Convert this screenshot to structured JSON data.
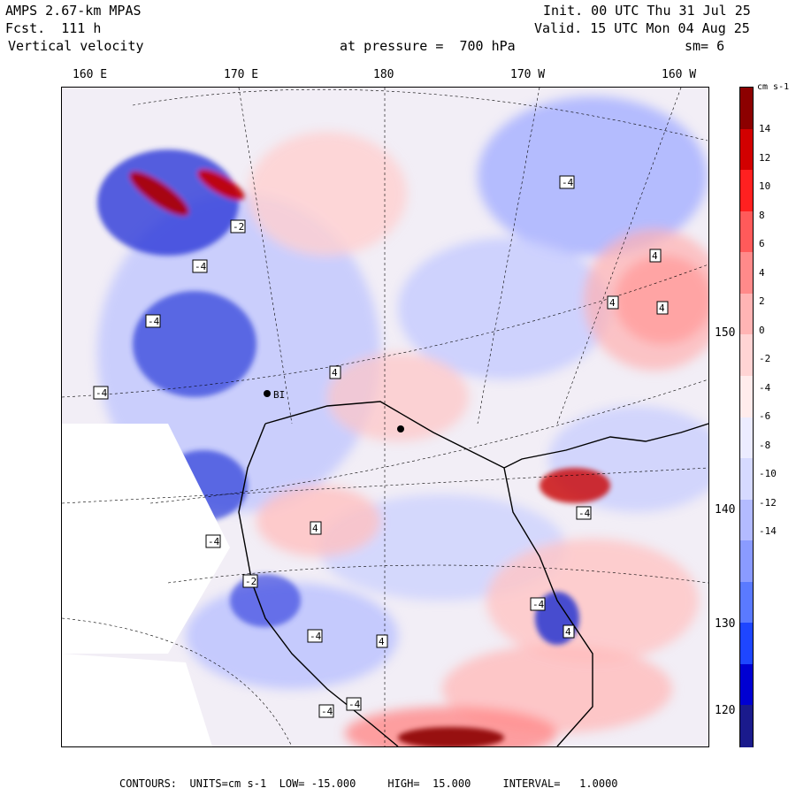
{
  "header": {
    "model": "AMPS 2.67-km MPAS",
    "forecast": "Fcst.  111 h",
    "field": "Vertical velocity",
    "init": "Init. 00 UTC Thu 31 Jul 25",
    "valid": "Valid. 15 UTC Mon 04 Aug 25",
    "pressure": "at pressure =  700 hPa",
    "smoothing": "sm= 6"
  },
  "lon_labels": [
    "160 E",
    "170 E",
    "180",
    "170 W",
    "160 W"
  ],
  "lat_labels": [
    "150 W",
    "140 W",
    "130 W",
    "120 W"
  ],
  "colorbar": {
    "unit": "cm s-1",
    "labels": [
      "14",
      "12",
      "10",
      "8",
      "6",
      "4",
      "2",
      "0",
      "-2",
      "-4",
      "-6",
      "-8",
      "-10",
      "-12",
      "-14"
    ],
    "colors": [
      "#1a1a8c",
      "#0000d2",
      "#1e46ff",
      "#5a7aff",
      "#8a9bff",
      "#b3bbff",
      "#d6daff",
      "#ececff",
      "#ffecec",
      "#ffd4d4",
      "#ffb4b4",
      "#ff8a8a",
      "#ff5a5a",
      "#ff2020",
      "#d20000",
      "#8c0000"
    ]
  },
  "map_markers": [
    {
      "text": "-4"
    },
    {
      "text": "4"
    },
    {
      "text": "4"
    },
    {
      "text": "4"
    },
    {
      "text": "-2"
    },
    {
      "text": "-4"
    },
    {
      "text": "4"
    },
    {
      "text": "-4"
    },
    {
      "text": "-4"
    },
    {
      "text": "-4"
    },
    {
      "text": "4"
    },
    {
      "text": "-2"
    },
    {
      "text": "-4"
    },
    {
      "text": "4"
    },
    {
      "text": "-4"
    },
    {
      "text": "4"
    },
    {
      "text": "-4"
    },
    {
      "text": "-4"
    },
    {
      "text": "-4"
    }
  ],
  "map_place_label": "BI",
  "footer": "CONTOURS:  UNITS=cm s-1  LOW= -15.000     HIGH=  15.000     INTERVAL=   1.0000"
}
